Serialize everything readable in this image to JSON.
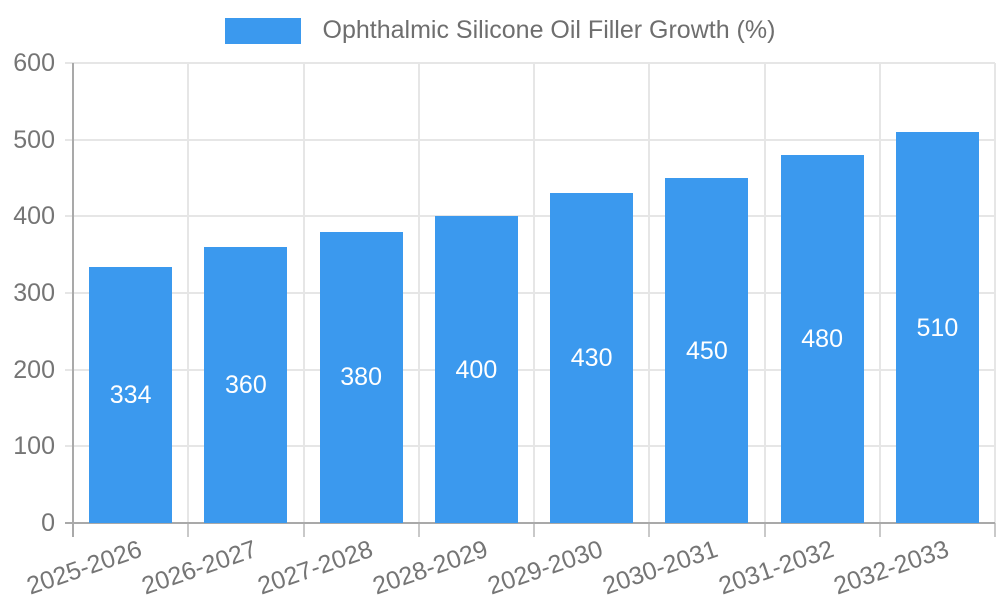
{
  "legend": {
    "label": "Ophthalmic Silicone Oil Filler Growth (%)"
  },
  "chart_data": {
    "type": "bar",
    "title": "",
    "series_name": "Ophthalmic Silicone Oil Filler Growth (%)",
    "categories": [
      "2025-2026",
      "2026-2027",
      "2027-2028",
      "2028-2029",
      "2029-2030",
      "2030-2031",
      "2031-2032",
      "2032-2033"
    ],
    "values": [
      334,
      360,
      380,
      400,
      430,
      450,
      480,
      510
    ],
    "value_labels": [
      "334",
      "360",
      "380",
      "400",
      "430",
      "450",
      "480",
      "510"
    ],
    "xlabel": "",
    "ylabel": "",
    "ylim": [
      0,
      600
    ],
    "yticks": [
      0,
      100,
      200,
      300,
      400,
      500,
      600
    ],
    "grid": "on",
    "legend_position": "top",
    "x_tick_rotation_deg": -19,
    "colors": {
      "bar": "#3B99EE",
      "value_label": "#FFFFFF",
      "grid": "#E6E6E6",
      "axis": "#A9A9A9",
      "sub_tick": "#C9C9C9",
      "tick_label": "#757575",
      "legend_text": "#6E6E6E",
      "background": "#FFFFFF"
    }
  }
}
